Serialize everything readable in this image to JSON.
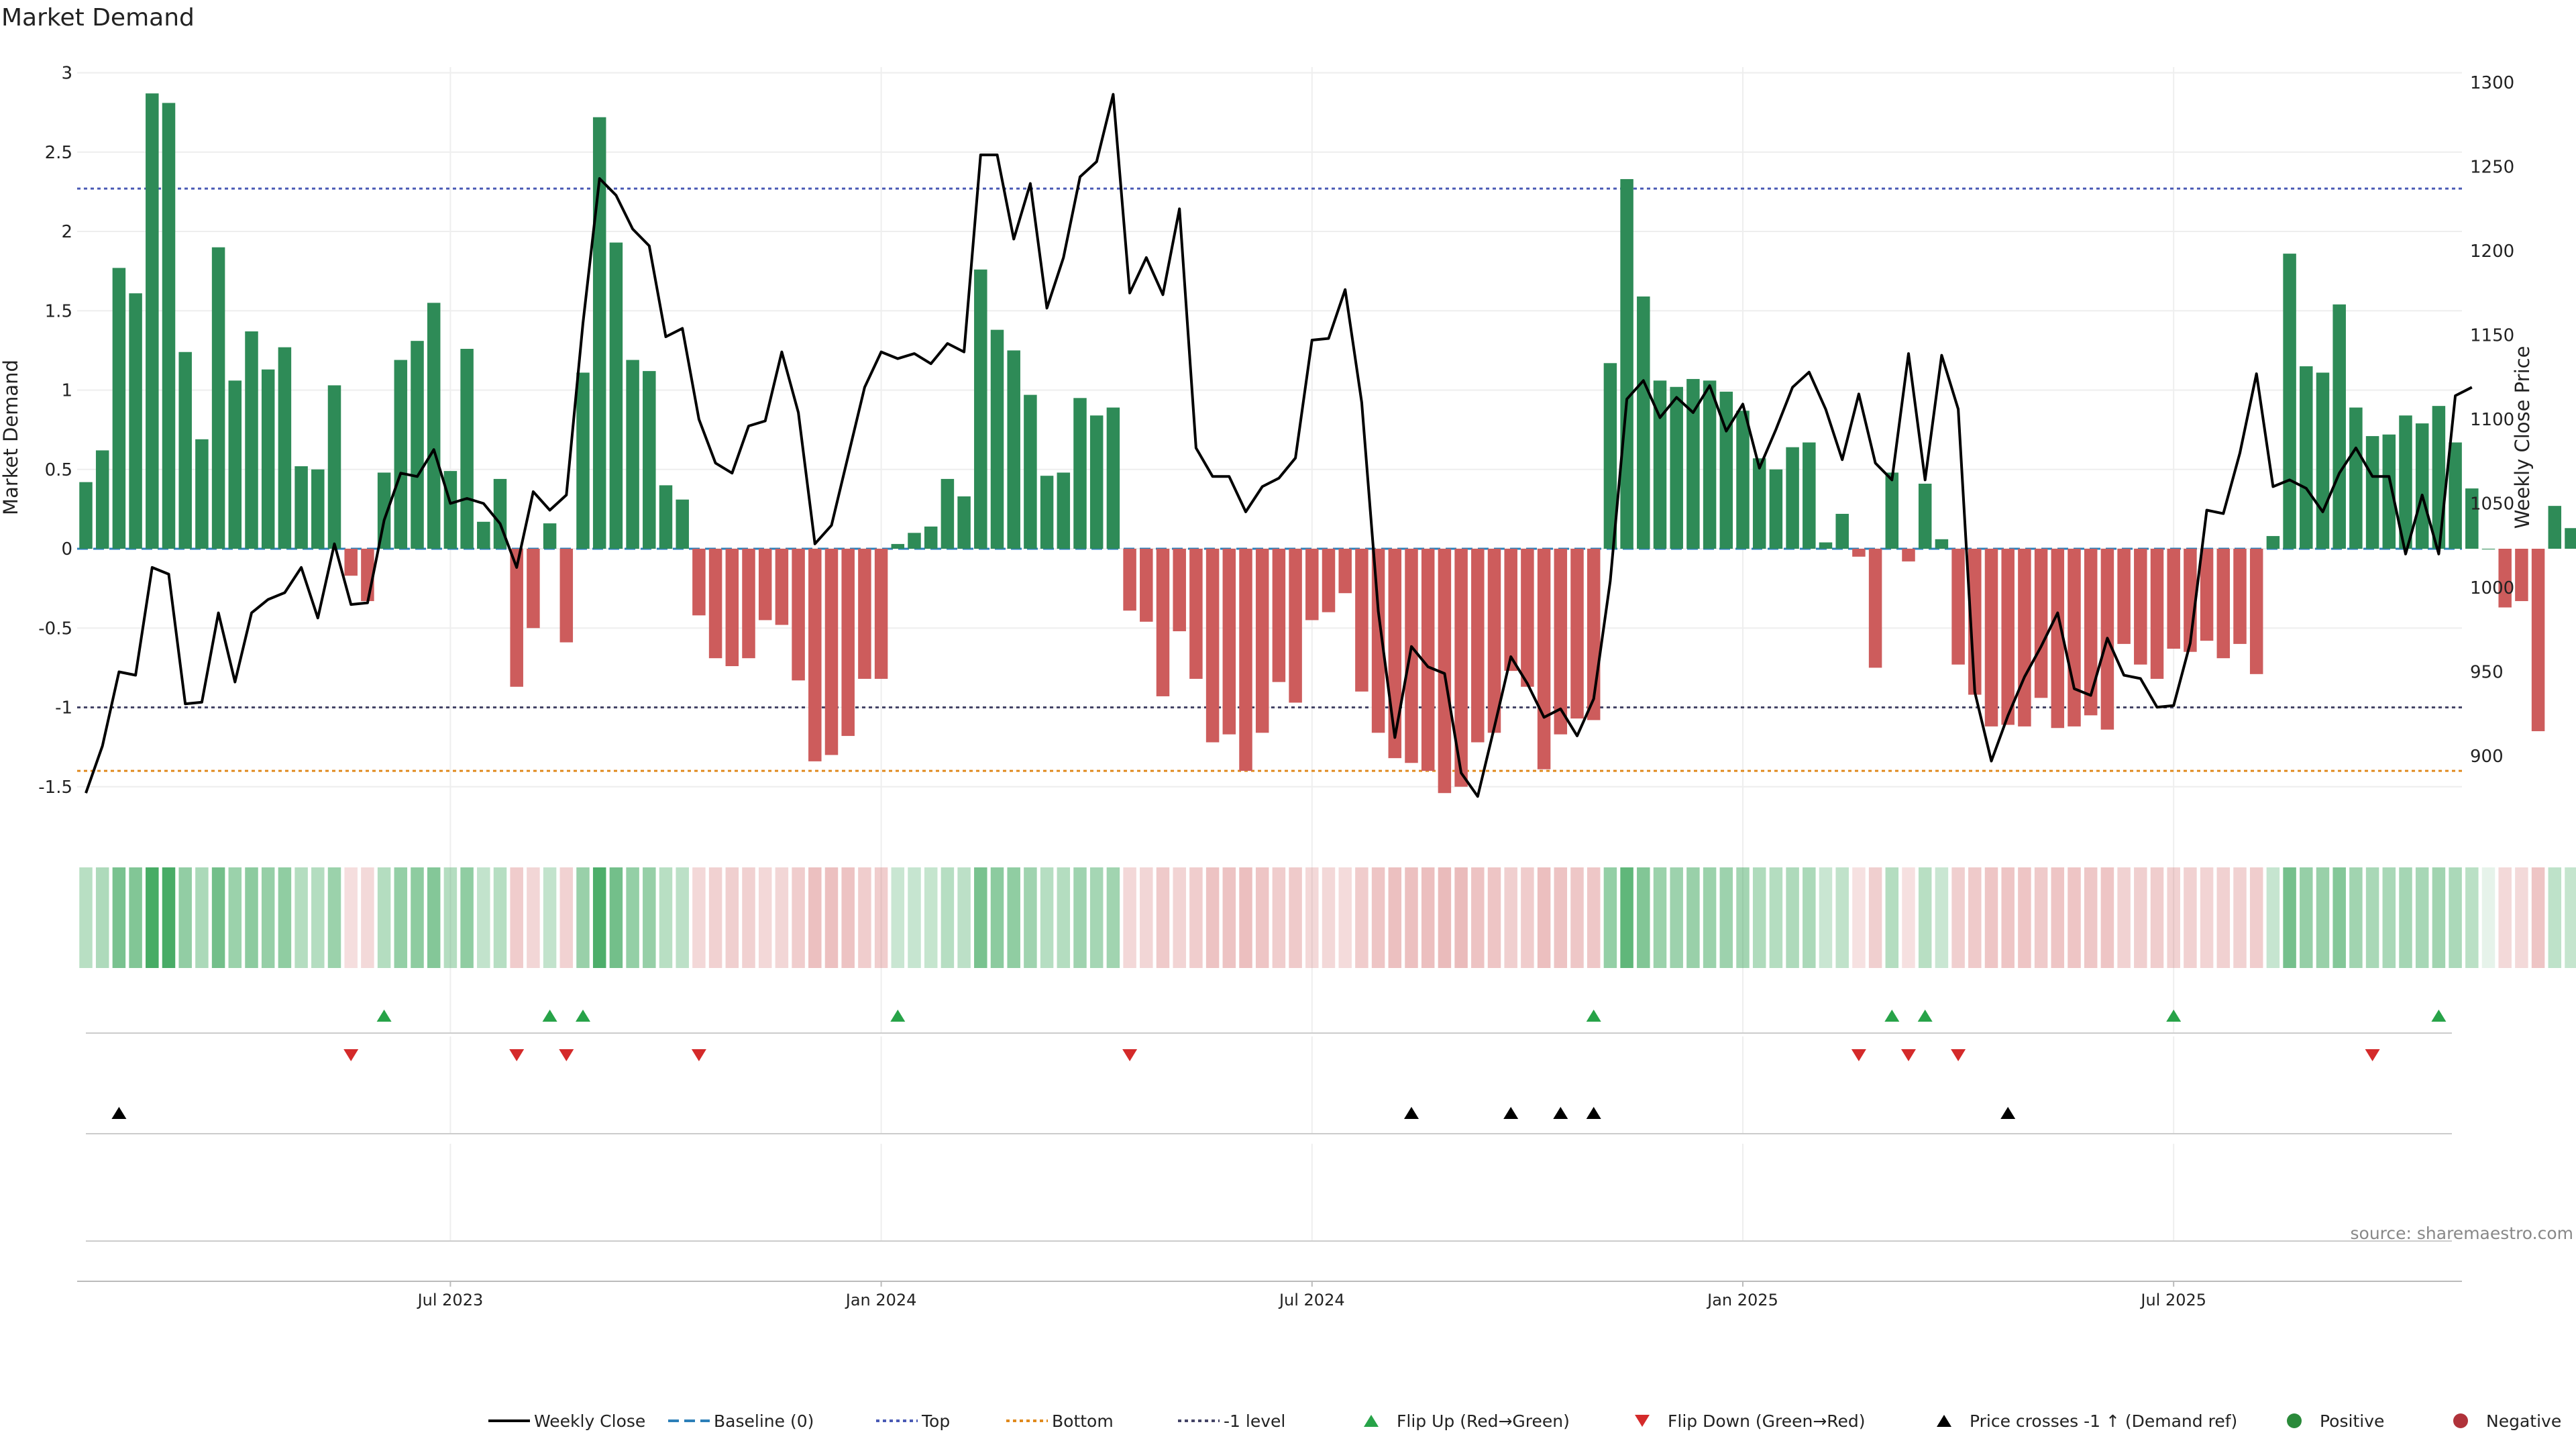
{
  "chart_data": {
    "type": "bar",
    "title": "Market Demand",
    "ylabel_left": "Market Demand",
    "ylabel_right": "Weekly Close Price",
    "source": "source: sharemaestro.com",
    "ylim_left": [
      -1.6,
      3.05
    ],
    "ylim_right": [
      870,
      1305
    ],
    "yticks_left": [
      "3",
      "2.5",
      "2",
      "1.5",
      "1",
      "0.5",
      "0",
      "-0.5",
      "-1",
      "-1.5"
    ],
    "yticks_right": [
      "1300",
      "1250",
      "1200",
      "1150",
      "1100",
      "1050",
      "1000",
      "950",
      "900"
    ],
    "xticks": [
      {
        "label": "Jul 2023",
        "week": 22
      },
      {
        "label": "Jan 2024",
        "week": 48
      },
      {
        "label": "Jul 2024",
        "week": 74
      },
      {
        "label": "Jan 2025",
        "week": 100
      },
      {
        "label": "Jul 2025",
        "week": 126
      }
    ],
    "reference_lines": {
      "top": 2.27,
      "bottom": -1.4,
      "minus_one": -1.0,
      "baseline": 0
    },
    "colors": {
      "positive": "#2e8b57",
      "negative": "#cd5c5c",
      "price": "#000000",
      "top": "#4a5ab5",
      "bottom": "#e08a1e",
      "minus_one": "#444466",
      "baseline": "#2c7fb8",
      "flip_up": "#27a348",
      "flip_down": "#d42a2a",
      "cross": "#000000"
    },
    "demand": [
      0.42,
      0.62,
      1.77,
      1.61,
      2.87,
      2.81,
      1.24,
      0.69,
      1.9,
      1.06,
      1.37,
      1.13,
      1.27,
      0.52,
      0.5,
      1.03,
      -0.17,
      -0.33,
      0.48,
      1.19,
      1.31,
      1.55,
      0.49,
      1.26,
      0.17,
      0.44,
      -0.87,
      -0.5,
      0.16,
      -0.59,
      1.11,
      2.72,
      1.93,
      1.19,
      1.12,
      0.4,
      0.31,
      -0.42,
      -0.69,
      -0.74,
      -0.69,
      -0.45,
      -0.48,
      -0.83,
      -1.34,
      -1.3,
      -1.18,
      -0.82,
      -0.82,
      0.03,
      0.1,
      0.14,
      0.44,
      0.33,
      1.76,
      1.38,
      1.25,
      0.97,
      0.46,
      0.48,
      0.95,
      0.84,
      0.89,
      -0.39,
      -0.46,
      -0.93,
      -0.52,
      -0.82,
      -1.22,
      -1.17,
      -1.4,
      -1.16,
      -0.84,
      -0.97,
      -0.45,
      -0.4,
      -0.28,
      -0.9,
      -1.16,
      -1.32,
      -1.35,
      -1.4,
      -1.54,
      -1.5,
      -1.22,
      -1.16,
      -0.77,
      -0.87,
      -1.39,
      -1.17,
      -1.07,
      -1.08,
      1.17,
      2.33,
      1.59,
      1.06,
      1.02,
      1.07,
      1.06,
      0.99,
      0.87,
      0.57,
      0.5,
      0.64,
      0.67,
      0.04,
      0.22,
      -0.05,
      -0.75,
      0.48,
      -0.08,
      0.41,
      0.06,
      -0.73,
      -0.92,
      -1.12,
      -1.11,
      -1.12,
      -0.94,
      -1.13,
      -1.12,
      -1.05,
      -1.14,
      -0.6,
      -0.73,
      -0.82,
      -0.63,
      -0.65,
      -0.58,
      -0.69,
      -0.6,
      -0.79,
      0.08,
      1.86,
      1.15,
      1.11,
      1.54,
      0.89,
      0.71,
      0.72,
      0.84,
      0.79,
      0.9,
      0.67,
      0.38,
      0.0,
      -0.37,
      -0.33,
      -1.15,
      0.27,
      0.13
    ],
    "price": [
      878,
      906,
      950,
      948,
      1012,
      1008,
      931,
      932,
      985,
      944,
      985,
      993,
      997,
      1012,
      982,
      1026,
      990,
      991,
      1040,
      1068,
      1066,
      1082,
      1050,
      1053,
      1050,
      1038,
      1012,
      1057,
      1046,
      1055,
      1157,
      1243,
      1233,
      1213,
      1203,
      1149,
      1154,
      1100,
      1074,
      1068,
      1096,
      1099,
      1140,
      1104,
      1026,
      1037,
      1078,
      1119,
      1140,
      1136,
      1139,
      1133,
      1145,
      1140,
      1257,
      1257,
      1207,
      1240,
      1166,
      1196,
      1244,
      1253,
      1293,
      1175,
      1196,
      1174,
      1225,
      1083,
      1066,
      1066,
      1045,
      1060,
      1065,
      1077,
      1147,
      1148,
      1177,
      1110,
      986,
      911,
      965,
      953,
      949,
      890,
      876,
      917,
      959,
      943,
      923,
      928,
      912,
      934,
      1004,
      1112,
      1123,
      1101,
      1113,
      1104,
      1120,
      1093,
      1109,
      1071,
      1094,
      1119,
      1128,
      1106,
      1076,
      1115,
      1074,
      1064,
      1139,
      1064,
      1138,
      1106,
      938,
      897,
      924,
      947,
      965,
      985,
      940,
      936,
      970,
      948,
      946,
      929,
      930,
      967,
      1046,
      1044,
      1080,
      1127,
      1060,
      1064,
      1059,
      1045,
      1068,
      1083,
      1066,
      1066,
      1020,
      1055,
      1020,
      1114,
      1119
    ],
    "heat_strip": [
      0.42,
      0.62,
      1.77,
      1.61,
      2.87,
      2.81,
      1.24,
      0.69,
      1.9,
      1.06,
      1.37,
      1.13,
      1.27,
      0.52,
      0.5,
      1.03,
      -0.17,
      -0.33,
      0.48,
      1.19,
      1.31,
      1.55,
      0.49,
      1.26,
      0.17,
      0.44,
      -0.87,
      -0.5,
      0.16,
      -0.59,
      1.11,
      2.72,
      1.93,
      1.19,
      1.12,
      0.4,
      0.31,
      -0.42,
      -0.69,
      -0.74,
      -0.69,
      -0.45,
      -0.48,
      -0.83,
      -1.34,
      -1.3,
      -1.18,
      -0.82,
      -0.82,
      0.03,
      0.1,
      0.14,
      0.44,
      0.33,
      1.76,
      1.38,
      1.25,
      0.97,
      0.46,
      0.48,
      0.95,
      0.84,
      0.89,
      -0.39,
      -0.46,
      -0.93,
      -0.52,
      -0.82,
      -1.22,
      -1.17,
      -1.4,
      -1.16,
      -0.84,
      -0.97,
      -0.45,
      -0.4,
      -0.28,
      -0.9,
      -1.16,
      -1.32,
      -1.35,
      -1.4,
      -1.54,
      -1.5,
      -1.22,
      -1.16,
      -0.77,
      -0.87,
      -1.39,
      -1.17,
      -1.07,
      -1.08,
      1.17,
      2.33,
      1.59,
      1.06,
      1.02,
      1.07,
      1.06,
      0.99,
      0.87,
      0.57,
      0.5,
      0.64,
      0.67,
      0.04,
      0.22,
      -0.05,
      -0.75,
      0.48,
      -0.08,
      0.41,
      0.06,
      -0.73,
      -0.92,
      -1.12,
      -1.11,
      -1.12,
      -0.94,
      -1.13,
      -1.12,
      -1.05,
      -1.14,
      -0.6,
      -0.73,
      -0.82,
      -0.63,
      -0.65,
      -0.58,
      -0.69,
      -0.6,
      -0.79,
      0.08,
      1.86,
      1.15,
      1.11,
      1.54,
      0.89,
      0.71,
      0.72,
      0.84,
      0.79,
      0.9,
      0.67,
      0.38,
      0.0,
      -0.37,
      -0.33,
      -1.15,
      0.27,
      0.13
    ],
    "flip_up_weeks": [
      18,
      28,
      30,
      49,
      91,
      109,
      111,
      126,
      142
    ],
    "flip_down_weeks": [
      16,
      26,
      29,
      37,
      63,
      107,
      110,
      113,
      138
    ],
    "price_cross_weeks": [
      2,
      80,
      86,
      89,
      91,
      116
    ],
    "legend": [
      {
        "label": "Weekly Close",
        "kind": "line"
      },
      {
        "label": "Baseline (0)",
        "kind": "dash-blue"
      },
      {
        "label": "Top",
        "kind": "dot-purple"
      },
      {
        "label": "Bottom",
        "kind": "dot-orange"
      },
      {
        "label": "-1 level",
        "kind": "dot-grey"
      },
      {
        "label": "Flip Up (Red→Green)",
        "kind": "tri-up-green"
      },
      {
        "label": "Flip Down (Green→Red)",
        "kind": "tri-down-red"
      },
      {
        "label": "Price crosses -1 ↑ (Demand ref)",
        "kind": "tri-up-black"
      },
      {
        "label": "Positive",
        "kind": "dot-green"
      },
      {
        "label": "Negative",
        "kind": "dot-red"
      }
    ]
  }
}
